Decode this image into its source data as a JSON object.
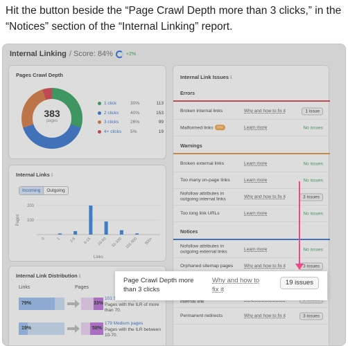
{
  "instruction": "Hit the button beside the “Page Crawl Depth more than 3 clicks,” in the “Notices” section of the “Internal Linking” report.",
  "report": {
    "title": "Internal Linking",
    "score_text": "/ Score: 84%",
    "score_delta": "+2%",
    "score_ring_icon": "score-ring-icon"
  },
  "crawl_depth": {
    "title": "Pages Crawl Depth",
    "total": "383",
    "total_sub": "pages",
    "colors": [
      "#2ca058",
      "#2f6fcf",
      "#d4733a",
      "#d33a49"
    ],
    "rows": [
      {
        "label": "1 click",
        "pct": "30%",
        "count": "113",
        "color": "#2ca058"
      },
      {
        "label": "2 clicks",
        "pct": "40%",
        "count": "153",
        "color": "#2f6fcf"
      },
      {
        "label": "3 clicks",
        "pct": "26%",
        "count": "99",
        "color": "#d4733a"
      },
      {
        "label": "4+ clicks",
        "pct": "5%",
        "count": "19",
        "color": "#d33a49"
      }
    ]
  },
  "internal_links": {
    "title": "Internal Links",
    "tabs": [
      "Incoming",
      "Outgoing"
    ],
    "active_tab": "Incoming"
  },
  "chart_data": {
    "type": "bar",
    "categories": [
      "0",
      "1",
      "2-5",
      "6-15",
      "16-50",
      "51-100",
      "101-500",
      "500+"
    ],
    "values": [
      0,
      8,
      24,
      200,
      90,
      30,
      8,
      0
    ],
    "ylabel": "Pages",
    "xlabel": "Links",
    "yticks": [
      200,
      100
    ],
    "ylim": [
      0,
      200
    ],
    "color": "#2f7ee0"
  },
  "distribution": {
    "title": "Internal Link Distribution",
    "col_links": "Links",
    "col_pages": "Pages",
    "rows": [
      {
        "links_pct": "79%",
        "links_value": 79,
        "pages_pct": "33%",
        "pages_value": 33,
        "strong": "101 Strong pages",
        "desc": "Pages with the ILR of more than 70."
      },
      {
        "links_pct": "19%",
        "links_value": 19,
        "pages_pct": "58%",
        "pages_value": 58,
        "strong": "179 Medium pages",
        "desc": "Pages with the ILR between 10-70."
      }
    ]
  },
  "issues": {
    "title": "Internal Link Issues",
    "sections": [
      {
        "name": "Errors",
        "color": "#d33a49",
        "rows": [
          {
            "name": "Broken internal links",
            "fix": "Why and how to fix it",
            "status": "1 issue",
            "is_button": true
          },
          {
            "name": "Malformed links",
            "badge": "new",
            "fix": "Learn more",
            "status": "No issues",
            "is_button": false
          }
        ]
      },
      {
        "name": "Warnings",
        "color": "#e08a3a",
        "rows": [
          {
            "name": "Broken external links",
            "fix": "Learn more",
            "status": "No issues",
            "is_button": false
          },
          {
            "name": "Too many on-page links",
            "fix": "Learn more",
            "status": "No issues",
            "is_button": false
          },
          {
            "name": "Nofollow attributes in outgoing internal links",
            "fix": "Why and how to fix it",
            "status": "3 issues",
            "is_button": true
          },
          {
            "name": "Too long link URLs",
            "fix": "Learn more",
            "status": "No issues",
            "is_button": false
          }
        ]
      },
      {
        "name": "Notices",
        "color": "#2f6fcf",
        "rows": [
          {
            "name": "Nofollow attributes in outgoing external links",
            "fix": "Learn more",
            "status": "No issues",
            "is_button": false
          },
          {
            "name": "Orphaned sitemap pages",
            "fix": "Why and how to fix it",
            "status": "3 issues",
            "is_button": true
          },
          {
            "name": "Page Crawl Depth more than 3 clicks",
            "fix": "Why and how to fix it",
            "status": "19 issues",
            "is_button": true
          },
          {
            "name": "Pages with only one internal link",
            "fix": "Why and how to fix it",
            "status": "3 issues",
            "is_button": true
          },
          {
            "name": "Permanent redirects",
            "fix": "Why and how to fix it",
            "status": "3 issues",
            "is_button": true
          }
        ]
      }
    ]
  },
  "callout": {
    "name": "Page Crawl Depth more than 3 clicks",
    "fix": "Why and how to fix it",
    "button": "19 issues"
  },
  "pointer_color": "#f0478a"
}
